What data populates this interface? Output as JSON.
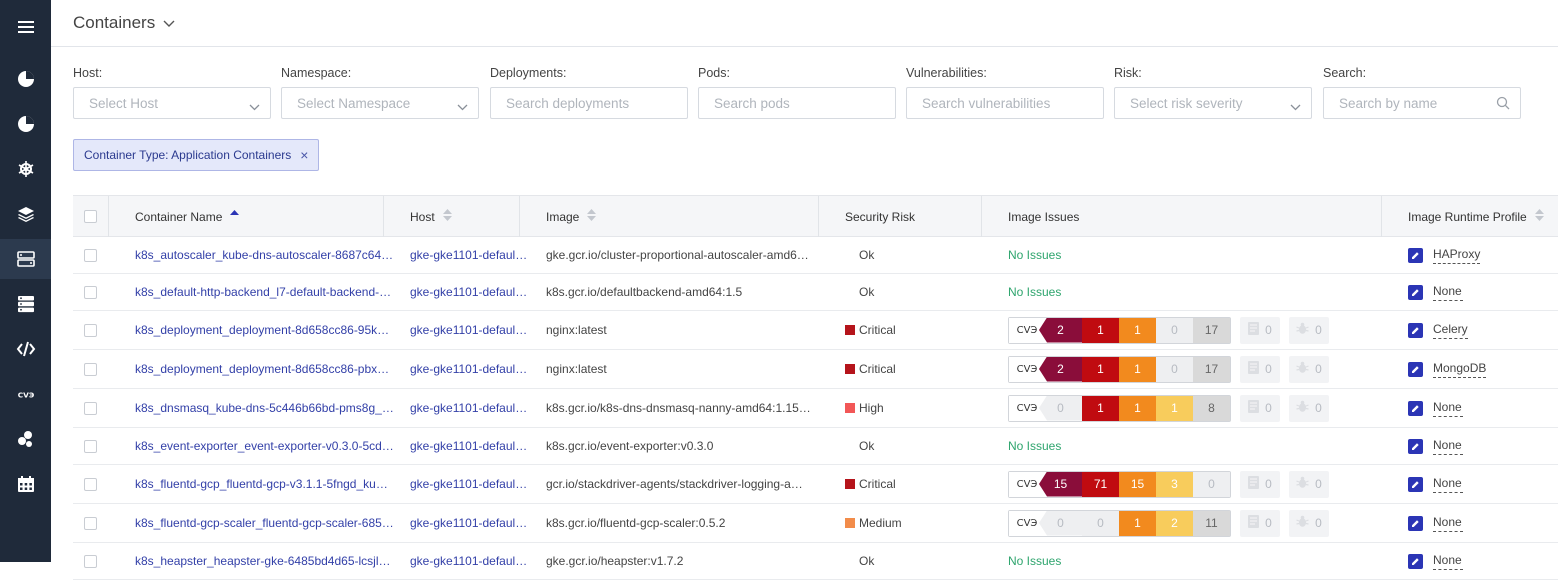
{
  "header": {
    "title": "Containers"
  },
  "filters": [
    {
      "key": "host",
      "label": "Host:",
      "placeholder": "Select Host",
      "type": "select"
    },
    {
      "key": "namespace",
      "label": "Namespace:",
      "placeholder": "Select Namespace",
      "type": "select"
    },
    {
      "key": "deployments",
      "label": "Deployments:",
      "placeholder": "Search deployments",
      "type": "input"
    },
    {
      "key": "pods",
      "label": "Pods:",
      "placeholder": "Search pods",
      "type": "input"
    },
    {
      "key": "vulnerabilities",
      "label": "Vulnerabilities:",
      "placeholder": "Search vulnerabilities",
      "type": "input"
    },
    {
      "key": "risk",
      "label": "Risk:",
      "placeholder": "Select risk severity",
      "type": "select"
    },
    {
      "key": "search",
      "label": "Search:",
      "placeholder": "Search by name",
      "type": "search"
    }
  ],
  "chip": {
    "label": "Container Type: Application Containers",
    "close": "×"
  },
  "columns": {
    "name": "Container Name",
    "host": "Host",
    "image": "Image",
    "risk": "Security Risk",
    "issues": "Image Issues",
    "profile": "Image Runtime Profile"
  },
  "cve_tag": "CVЭ",
  "colors": {
    "critical_dark": "#8a0d3a",
    "critical": "#c00b10",
    "high": "#f28a1e",
    "medium": "#f8cc5c",
    "low": "#d9d9d9",
    "empty": "#eeeff1",
    "risk_critical": "#b5141b",
    "risk_high": "#f25757",
    "risk_medium": "#f28c4a",
    "no_issues": "#2fa56e"
  },
  "rows": [
    {
      "name": "k8s_autoscaler_kube-dns-autoscaler-8687c64…",
      "host": "gke-gke1101-defaul…",
      "image": "gke.gcr.io/cluster-proportional-autoscaler-amd6…",
      "risk": "Ok",
      "risk_level": "ok",
      "issues": null,
      "no_issues": "No Issues",
      "profile": "HAProxy"
    },
    {
      "name": "k8s_default-http-backend_l7-default-backend-…",
      "host": "gke-gke1101-defaul…",
      "image": "k8s.gcr.io/defaultbackend-amd64:1.5",
      "risk": "Ok",
      "risk_level": "ok",
      "issues": null,
      "no_issues": "No Issues",
      "profile": "None"
    },
    {
      "name": "k8s_deployment_deployment-8d658cc86-95k…",
      "host": "gke-gke1101-defaul…",
      "image": "nginx:latest",
      "risk": "Critical",
      "risk_level": "critical",
      "issues": {
        "cve": [
          "2",
          "1",
          "1",
          "0",
          "17"
        ],
        "cfg": "0",
        "mal": "0"
      },
      "no_issues": "",
      "profile": "Celery"
    },
    {
      "name": "k8s_deployment_deployment-8d658cc86-pbx…",
      "host": "gke-gke1101-defaul…",
      "image": "nginx:latest",
      "risk": "Critical",
      "risk_level": "critical",
      "issues": {
        "cve": [
          "2",
          "1",
          "1",
          "0",
          "17"
        ],
        "cfg": "0",
        "mal": "0"
      },
      "no_issues": "",
      "profile": "MongoDB"
    },
    {
      "name": "k8s_dnsmasq_kube-dns-5c446b66bd-pms8g_…",
      "host": "gke-gke1101-defaul…",
      "image": "k8s.gcr.io/k8s-dns-dnsmasq-nanny-amd64:1.15…",
      "risk": "High",
      "risk_level": "high",
      "issues": {
        "cve": [
          "0",
          "1",
          "1",
          "1",
          "8"
        ],
        "cfg": "0",
        "mal": "0"
      },
      "no_issues": "",
      "profile": "None"
    },
    {
      "name": "k8s_event-exporter_event-exporter-v0.3.0-5cd…",
      "host": "gke-gke1101-defaul…",
      "image": "k8s.gcr.io/event-exporter:v0.3.0",
      "risk": "Ok",
      "risk_level": "ok",
      "issues": null,
      "no_issues": "No Issues",
      "profile": "None"
    },
    {
      "name": "k8s_fluentd-gcp_fluentd-gcp-v3.1.1-5fngd_ku…",
      "host": "gke-gke1101-defaul…",
      "image": "gcr.io/stackdriver-agents/stackdriver-logging-a…",
      "risk": "Critical",
      "risk_level": "critical",
      "issues": {
        "cve": [
          "15",
          "71",
          "15",
          "3",
          "0"
        ],
        "cfg": "0",
        "mal": "0"
      },
      "no_issues": "",
      "profile": "None"
    },
    {
      "name": "k8s_fluentd-gcp-scaler_fluentd-gcp-scaler-685…",
      "host": "gke-gke1101-defaul…",
      "image": "k8s.gcr.io/fluentd-gcp-scaler:0.5.2",
      "risk": "Medium",
      "risk_level": "medium",
      "issues": {
        "cve": [
          "0",
          "0",
          "1",
          "2",
          "11"
        ],
        "cfg": "0",
        "mal": "0"
      },
      "no_issues": "",
      "profile": "None"
    },
    {
      "name": "k8s_heapster_heapster-gke-6485bd4d65-lcsjl…",
      "host": "gke-gke1101-defaul…",
      "image": "gke.gcr.io/heapster:v1.7.2",
      "risk": "Ok",
      "risk_level": "ok",
      "issues": null,
      "no_issues": "No Issues",
      "profile": "None"
    }
  ]
}
